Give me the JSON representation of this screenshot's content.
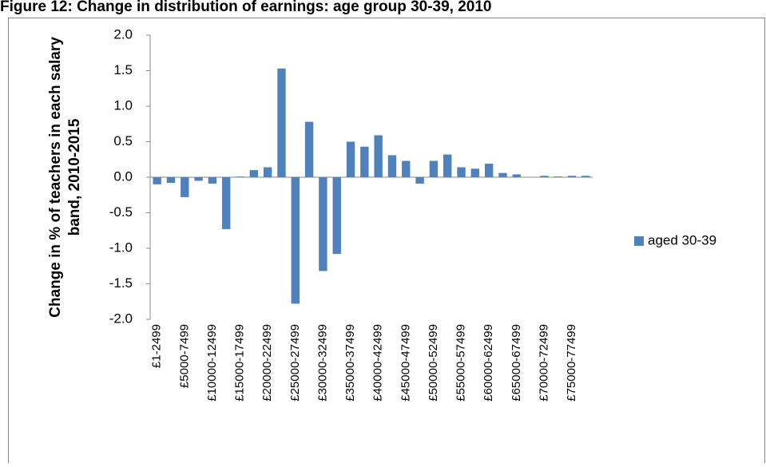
{
  "chart_data": {
    "type": "bar",
    "title": "Figure 12: Change in distribution of earnings: age group 30-39, 2010",
    "y_label": [
      "Change in % of teachers in each salary",
      "band, 2010-2015"
    ],
    "categories": [
      "£1-2499",
      null,
      "£5000-7499",
      null,
      "£10000-12499",
      null,
      "£15000-17499",
      null,
      "£20000-22499",
      null,
      "£25000-27499",
      null,
      "£30000-32499",
      null,
      "£35000-37499",
      null,
      "£40000-42499",
      null,
      "£45000-47499",
      null,
      "£50000-52499",
      null,
      "£55000-57499",
      null,
      "£60000-62499",
      null,
      "£65000-67499",
      null,
      "£70000-72499",
      null,
      "£75000-77499",
      null
    ],
    "series": [
      {
        "name": "aged 30-39",
        "color": "#4f81bd",
        "values": [
          -0.1,
          -0.08,
          -0.28,
          -0.05,
          -0.09,
          -0.73,
          0.01,
          0.1,
          0.14,
          1.53,
          -1.78,
          0.78,
          -1.32,
          -1.08,
          0.5,
          0.43,
          0.59,
          0.31,
          0.23,
          -0.09,
          0.23,
          0.32,
          0.14,
          0.12,
          0.19,
          0.06,
          0.04,
          0.0,
          0.02,
          0.01,
          0.02,
          0.02
        ]
      }
    ],
    "ylim": [
      -2,
      2
    ],
    "yticks": [
      {
        "value": -2,
        "label": "-2.0"
      },
      {
        "value": -1.5,
        "label": "-1.5"
      },
      {
        "value": -1,
        "label": "-1.0"
      },
      {
        "value": -0.5,
        "label": "-0.5"
      },
      {
        "value": 0,
        "label": "0.0"
      },
      {
        "value": 0.5,
        "label": "0.5"
      },
      {
        "value": 1,
        "label": "1.0"
      },
      {
        "value": 1.5,
        "label": "1.5"
      },
      {
        "value": 2,
        "label": "2.0"
      }
    ],
    "legend": "right"
  }
}
